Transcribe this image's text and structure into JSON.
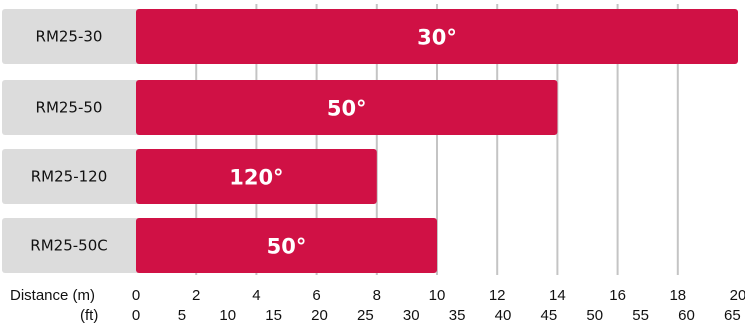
{
  "chart_data": {
    "type": "bar",
    "orientation": "horizontal",
    "categories": [
      "RM25-30",
      "RM25-50",
      "RM25-120",
      "RM25-50C"
    ],
    "values": [
      20,
      14,
      8,
      10
    ],
    "value_labels": [
      "30°",
      "50°",
      "120°",
      "50°"
    ],
    "x_axis_m": {
      "label": "Distance (m)",
      "ticks": [
        "0",
        "2",
        "4",
        "6",
        "8",
        "10",
        "12",
        "14",
        "16",
        "18",
        "20"
      ]
    },
    "x_axis_ft": {
      "label": "(ft)",
      "ticks": [
        "0",
        "5",
        "10",
        "15",
        "20",
        "25",
        "30",
        "35",
        "40",
        "45",
        "50",
        "55",
        "60",
        "65"
      ]
    },
    "xlim": [
      0,
      20
    ],
    "grid": true,
    "legend": "none",
    "colors": {
      "bar": "#d01145",
      "category_panel": "#dcdcdc",
      "grid": "#c4c4c4",
      "text": "#111111",
      "bar_text": "#ffffff"
    }
  }
}
